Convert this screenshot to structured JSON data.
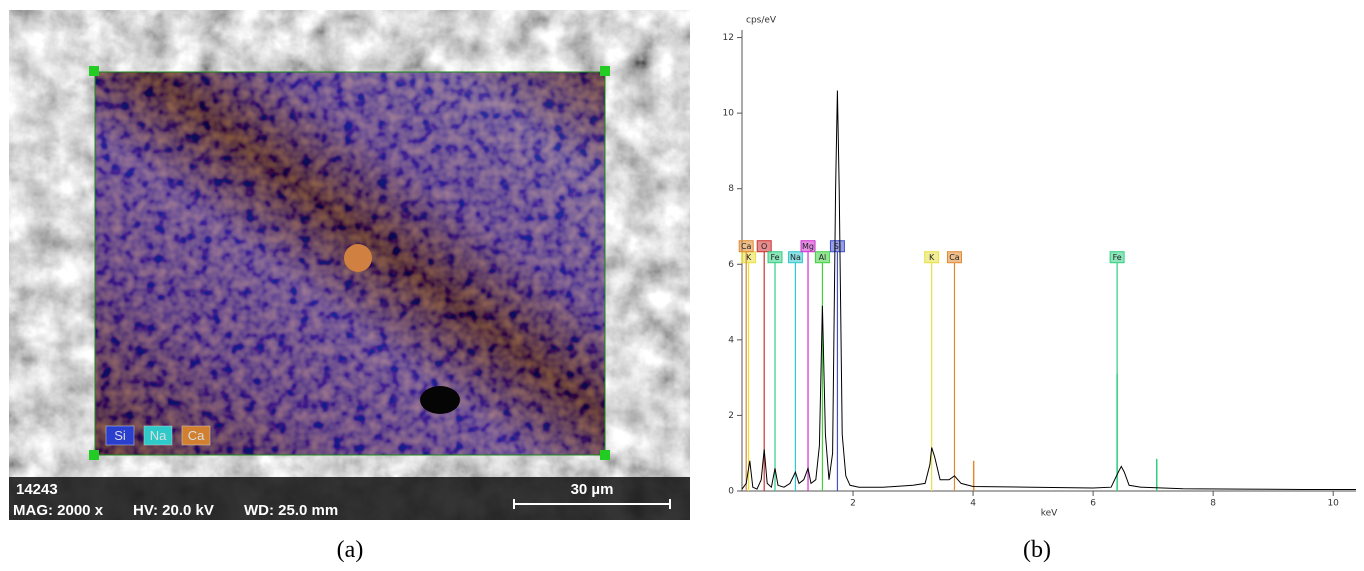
{
  "image": {
    "scan_id": "14243",
    "magnification": "MAG: 2000 x",
    "high_voltage": "HV: 20.0 kV",
    "working_distance": "WD: 25.0 mm",
    "scale_bar": "30 µm",
    "legend": [
      {
        "name": "Si",
        "color": "#2b3fcf"
      },
      {
        "name": "Na",
        "color": "#2ec9c9"
      },
      {
        "name": "Ca",
        "color": "#d08030"
      }
    ],
    "panel_label": "(a)"
  },
  "chart_data": {
    "type": "line",
    "y_label": "cps/eV",
    "x_label": "keV",
    "panel_label": "(b)",
    "xlim": [
      0.15,
      10.38
    ],
    "ylim": [
      0,
      12.2
    ],
    "xticks": [
      2,
      4,
      6,
      8,
      10
    ],
    "yticks": [
      0,
      2,
      4,
      6,
      8,
      10,
      12
    ],
    "series": [
      {
        "color": "#000000",
        "x": [
          0.15,
          0.22,
          0.28,
          0.33,
          0.4,
          0.47,
          0.52,
          0.57,
          0.64,
          0.7,
          0.75,
          0.85,
          0.95,
          1.04,
          1.1,
          1.18,
          1.25,
          1.3,
          1.38,
          1.44,
          1.49,
          1.54,
          1.6,
          1.66,
          1.71,
          1.74,
          1.77,
          1.82,
          1.88,
          1.95,
          2.1,
          2.5,
          3.0,
          3.2,
          3.28,
          3.31,
          3.36,
          3.45,
          3.6,
          3.69,
          3.8,
          4.0,
          5.0,
          6.0,
          6.3,
          6.42,
          6.47,
          6.52,
          6.6,
          6.8,
          7.5,
          8.5,
          9.5,
          10.38
        ],
        "values": [
          0.05,
          0.2,
          0.8,
          0.1,
          0.05,
          0.3,
          1.1,
          0.2,
          0.1,
          0.6,
          0.15,
          0.1,
          0.2,
          0.5,
          0.2,
          0.3,
          0.6,
          0.2,
          0.3,
          1.2,
          4.9,
          1.5,
          0.3,
          1.0,
          8.0,
          10.6,
          8.0,
          1.5,
          0.4,
          0.15,
          0.1,
          0.1,
          0.15,
          0.2,
          0.7,
          1.15,
          0.9,
          0.3,
          0.3,
          0.4,
          0.2,
          0.12,
          0.1,
          0.08,
          0.1,
          0.5,
          0.65,
          0.5,
          0.15,
          0.1,
          0.06,
          0.05,
          0.04,
          0.04
        ]
      }
    ],
    "element_markers": [
      {
        "label": "K",
        "energy": 0.26,
        "color": "#e8e040"
      },
      {
        "label": "Ca",
        "energy": 0.22,
        "color": "#e08a30"
      },
      {
        "label": "O",
        "energy": 0.52,
        "color": "#d03030"
      },
      {
        "label": "Fe",
        "energy": 0.7,
        "color": "#30d080"
      },
      {
        "label": "Na",
        "energy": 1.04,
        "color": "#30c8d0"
      },
      {
        "label": "Mg",
        "energy": 1.25,
        "color": "#d030d0"
      },
      {
        "label": "Al",
        "energy": 1.49,
        "color": "#40d040"
      },
      {
        "label": "Si",
        "energy": 1.74,
        "color": "#4050d0"
      },
      {
        "label": "K",
        "energy": 3.31,
        "color": "#e8e040"
      },
      {
        "label": "Ca",
        "energy": 3.69,
        "color": "#e08a30"
      },
      {
        "label": "Fe",
        "energy": 6.4,
        "color": "#30d080"
      }
    ],
    "reference_lines": [
      {
        "energy": 4.01,
        "height": 0.8,
        "color": "#e08a30"
      },
      {
        "energy": 7.06,
        "height": 0.85,
        "color": "#30d080"
      },
      {
        "energy": 6.4,
        "height": 3.1,
        "color": "#30d080"
      }
    ]
  }
}
